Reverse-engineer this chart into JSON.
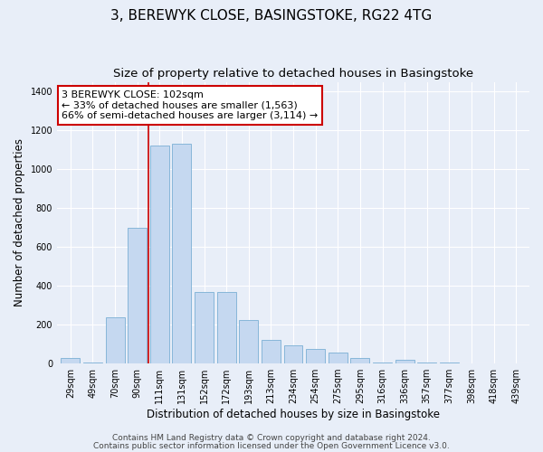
{
  "title": "3, BEREWYK CLOSE, BASINGSTOKE, RG22 4TG",
  "subtitle": "Size of property relative to detached houses in Basingstoke",
  "xlabel": "Distribution of detached houses by size in Basingstoke",
  "ylabel": "Number of detached properties",
  "categories": [
    "29sqm",
    "49sqm",
    "70sqm",
    "90sqm",
    "111sqm",
    "131sqm",
    "152sqm",
    "172sqm",
    "193sqm",
    "213sqm",
    "234sqm",
    "254sqm",
    "275sqm",
    "295sqm",
    "316sqm",
    "336sqm",
    "357sqm",
    "377sqm",
    "398sqm",
    "418sqm",
    "439sqm"
  ],
  "values": [
    30,
    5,
    240,
    700,
    1120,
    1130,
    370,
    370,
    225,
    120,
    95,
    75,
    55,
    30,
    5,
    20,
    3,
    3,
    2,
    2,
    2
  ],
  "bar_color": "#c5d8f0",
  "bar_edge_color": "#7aafd4",
  "marker_line_color": "#cc0000",
  "annotation_box_text": "3 BEREWYK CLOSE: 102sqm\n← 33% of detached houses are smaller (1,563)\n66% of semi-detached houses are larger (3,114) →",
  "annotation_box_color": "#cc0000",
  "ylim": [
    0,
    1450
  ],
  "yticks": [
    0,
    200,
    400,
    600,
    800,
    1000,
    1200,
    1400
  ],
  "footer_line1": "Contains HM Land Registry data © Crown copyright and database right 2024.",
  "footer_line2": "Contains public sector information licensed under the Open Government Licence v3.0.",
  "bg_color": "#e8eef8",
  "plot_bg_color": "#e8eef8",
  "grid_color": "#ffffff",
  "title_fontsize": 11,
  "subtitle_fontsize": 9.5,
  "axis_label_fontsize": 8.5,
  "tick_fontsize": 7,
  "annotation_fontsize": 8,
  "footer_fontsize": 6.5
}
